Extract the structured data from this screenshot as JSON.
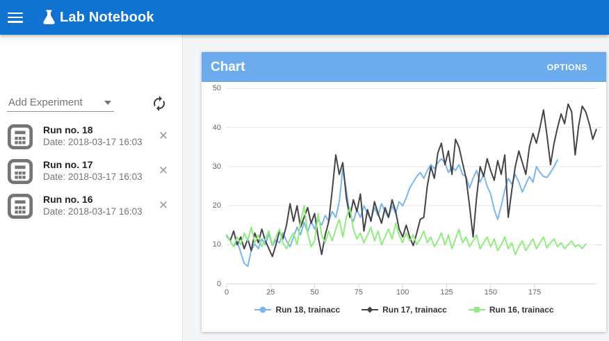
{
  "app_bar": {
    "title": "Lab Notebook",
    "color": "#1173d1"
  },
  "icons": {
    "close_glyph": "✕"
  },
  "sidebar": {
    "add_experiment_label": "Add Experiment",
    "runs": [
      {
        "title": "Run no. 18",
        "date": "Date: 2018-03-17 16:03"
      },
      {
        "title": "Run no. 17",
        "date": "Date: 2018-03-17 16:03"
      },
      {
        "title": "Run no. 16",
        "date": "Date: 2018-03-17 16:03"
      }
    ]
  },
  "chart_panel": {
    "title": "Chart",
    "options_label": "OPTIONS",
    "header_color": "#6dabef"
  },
  "chart_data": {
    "type": "line",
    "title": "",
    "xlabel": "",
    "ylabel": "",
    "xlim": [
      0,
      210
    ],
    "ylim": [
      0,
      50
    ],
    "x_ticks": [
      0,
      25,
      50,
      75,
      100,
      125,
      150,
      175
    ],
    "y_ticks": [
      0,
      10,
      20,
      30,
      40,
      50
    ],
    "grid": true,
    "legend_position": "bottom",
    "colors": {
      "grid": "#e6e6e6",
      "axis": "#ccd6eb",
      "label": "#666666"
    },
    "series": [
      {
        "name": "Run 18, trainacc",
        "color": "#7cb5ec",
        "marker": "circle",
        "x_start": 0,
        "x_step": 2,
        "values": [
          12.2,
          11.0,
          9.5,
          10.8,
          8.0,
          5.2,
          4.5,
          8.5,
          10.2,
          9.0,
          11.5,
          10.0,
          12.8,
          9.8,
          11.2,
          10.5,
          13.0,
          11.0,
          9.5,
          12.0,
          14.5,
          12.5,
          15.8,
          13.2,
          16.0,
          14.0,
          16.5,
          15.0,
          17.5,
          16.0,
          18.5,
          17.0,
          21.0,
          29.5,
          24.0,
          17.5,
          16.0,
          19.0,
          17.0,
          20.0,
          18.0,
          16.5,
          19.5,
          17.5,
          20.5,
          18.5,
          17.0,
          20.0,
          18.0,
          21.0,
          20.0,
          22.0,
          24.5,
          26.0,
          27.5,
          28.5,
          27.0,
          29.0,
          30.5,
          29.5,
          31.0,
          32.0,
          31.0,
          28.5,
          30.0,
          29.0,
          30.5,
          28.0,
          27.5,
          24.5,
          27.0,
          29.0,
          26.0,
          28.0,
          25.0,
          23.0,
          19.0,
          16.5,
          20.0,
          24.0,
          27.0,
          25.5,
          28.0,
          26.0,
          23.5,
          25.5,
          27.5,
          26.0,
          30.0,
          28.5,
          27.5,
          27.2,
          28.5,
          30.0,
          31.7
        ]
      },
      {
        "name": "Run 17, trainacc",
        "color": "#434348",
        "marker": "diamond",
        "x_start": 0,
        "x_step": 2,
        "values": [
          12.5,
          11.0,
          13.5,
          10.0,
          12.0,
          9.0,
          11.5,
          8.5,
          13.0,
          10.5,
          14.0,
          11.0,
          9.0,
          7.0,
          10.0,
          13.5,
          11.5,
          15.0,
          20.5,
          16.0,
          20.0,
          14.5,
          17.0,
          19.5,
          15.5,
          18.0,
          12.0,
          7.5,
          12.5,
          16.0,
          24.0,
          33.0,
          28.0,
          31.0,
          22.0,
          17.0,
          21.5,
          18.5,
          23.0,
          13.5,
          19.0,
          16.0,
          21.0,
          18.0,
          15.5,
          19.5,
          17.0,
          21.5,
          18.5,
          14.0,
          12.0,
          15.0,
          12.0,
          9.8,
          13.0,
          16.5,
          17.0,
          25.0,
          30.0,
          27.0,
          33.5,
          36.0,
          30.5,
          34.0,
          28.0,
          37.0,
          35.0,
          31.0,
          27.0,
          20.0,
          12.0,
          22.0,
          30.0,
          27.5,
          32.0,
          29.0,
          26.5,
          31.5,
          28.0,
          33.0,
          17.0,
          24.0,
          30.0,
          34.0,
          31.0,
          28.0,
          35.0,
          38.5,
          36.0,
          40.0,
          44.5,
          38.0,
          30.5,
          36.0,
          40.0,
          43.5,
          41.0,
          46.0,
          44.0,
          33.0,
          40.5,
          45.5,
          44.0,
          41.0,
          37.0,
          39.5
        ]
      },
      {
        "name": "Run 16, trainacc",
        "color": "#90ed7d",
        "marker": "square",
        "x_start": 0,
        "x_step": 2,
        "values": [
          12.5,
          11.0,
          9.5,
          12.0,
          10.0,
          13.0,
          11.0,
          14.5,
          10.5,
          12.5,
          9.5,
          11.5,
          13.5,
          10.0,
          12.0,
          14.0,
          10.5,
          9.0,
          11.5,
          13.0,
          10.0,
          15.5,
          20.0,
          13.0,
          9.5,
          11.0,
          18.0,
          12.5,
          10.5,
          13.5,
          11.0,
          14.0,
          16.5,
          12.0,
          17.0,
          19.5,
          14.0,
          11.5,
          13.0,
          10.5,
          12.5,
          14.5,
          11.0,
          13.5,
          10.0,
          12.0,
          14.0,
          11.5,
          15.5,
          12.5,
          10.5,
          13.0,
          11.0,
          12.5,
          10.0,
          11.5,
          13.5,
          10.5,
          12.0,
          9.5,
          11.0,
          13.0,
          10.0,
          12.5,
          9.0,
          11.5,
          13.9,
          10.5,
          12.0,
          9.5,
          11.0,
          12.5,
          9.0,
          10.5,
          12.0,
          9.5,
          11.5,
          8.5,
          10.0,
          12.0,
          9.0,
          10.5,
          7.5,
          9.5,
          11.0,
          8.5,
          10.0,
          11.5,
          9.0,
          10.5,
          12.0,
          9.2,
          10.5,
          11.5,
          9.5,
          10.5,
          9.0,
          10.0,
          11.0,
          9.5,
          10.0,
          9.0,
          10.2
        ]
      }
    ]
  }
}
